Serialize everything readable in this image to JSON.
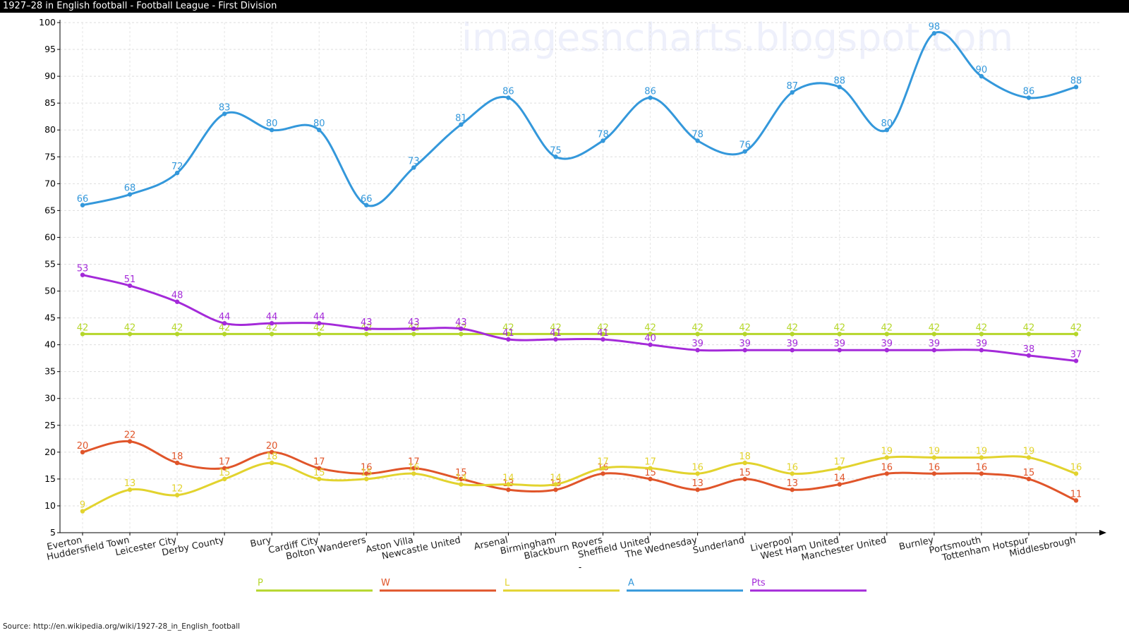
{
  "window": {
    "title": "1927–28 in English football - Football League - First Division",
    "source": "Source: http://en.wikipedia.org/wiki/1927-28_in_English_football",
    "watermark": "imagesncharts.blogspot.com"
  },
  "chart_data": {
    "type": "line",
    "title": "1927–28 in English football - Football League - First Division",
    "xlabel": "-",
    "ylabel": "",
    "ylim": [
      5,
      100
    ],
    "yticks": [
      5,
      10,
      15,
      20,
      25,
      30,
      35,
      40,
      45,
      50,
      55,
      60,
      65,
      70,
      75,
      80,
      85,
      90,
      95,
      100
    ],
    "grid": true,
    "legend_position": "bottom",
    "categories": [
      "Everton",
      "Huddersfield Town",
      "Leicester City",
      "Derby County",
      "Bury",
      "Cardiff City",
      "Bolton Wanderers",
      "Aston Villa",
      "Newcastle United",
      "Arsenal",
      "Birmingham",
      "Blackburn Rovers",
      "Sheffield United",
      "The Wednesday",
      "Sunderland",
      "Liverpool",
      "West Ham United",
      "Manchester United",
      "Burnley",
      "Portsmouth",
      "Tottenham Hotspur",
      "Middlesbrough"
    ],
    "series": [
      {
        "name": "P",
        "color": "#b5d62a",
        "values": [
          42,
          42,
          42,
          42,
          42,
          42,
          42,
          42,
          42,
          42,
          42,
          42,
          42,
          42,
          42,
          42,
          42,
          42,
          42,
          42,
          42,
          42
        ]
      },
      {
        "name": "W",
        "color": "#e0552a",
        "values": [
          20,
          22,
          18,
          17,
          20,
          17,
          16,
          17,
          15,
          13,
          13,
          16,
          15,
          13,
          15,
          13,
          14,
          16,
          16,
          16,
          15,
          11
        ]
      },
      {
        "name": "L",
        "color": "#e2d32e",
        "values": [
          9,
          13,
          12,
          15,
          18,
          15,
          15,
          16,
          14,
          14,
          14,
          17,
          17,
          16,
          18,
          16,
          17,
          19,
          19,
          19,
          19,
          16
        ]
      },
      {
        "name": "A",
        "color": "#3498db",
        "values": [
          66,
          68,
          72,
          83,
          80,
          80,
          66,
          73,
          81,
          86,
          75,
          78,
          86,
          78,
          76,
          87,
          88,
          80,
          98,
          90,
          86,
          88
        ]
      },
      {
        "name": "Pts",
        "color": "#a42ad9",
        "values": [
          53,
          51,
          48,
          44,
          44,
          44,
          43,
          43,
          43,
          41,
          41,
          41,
          40,
          39,
          39,
          39,
          39,
          39,
          39,
          39,
          38,
          37
        ]
      }
    ]
  }
}
